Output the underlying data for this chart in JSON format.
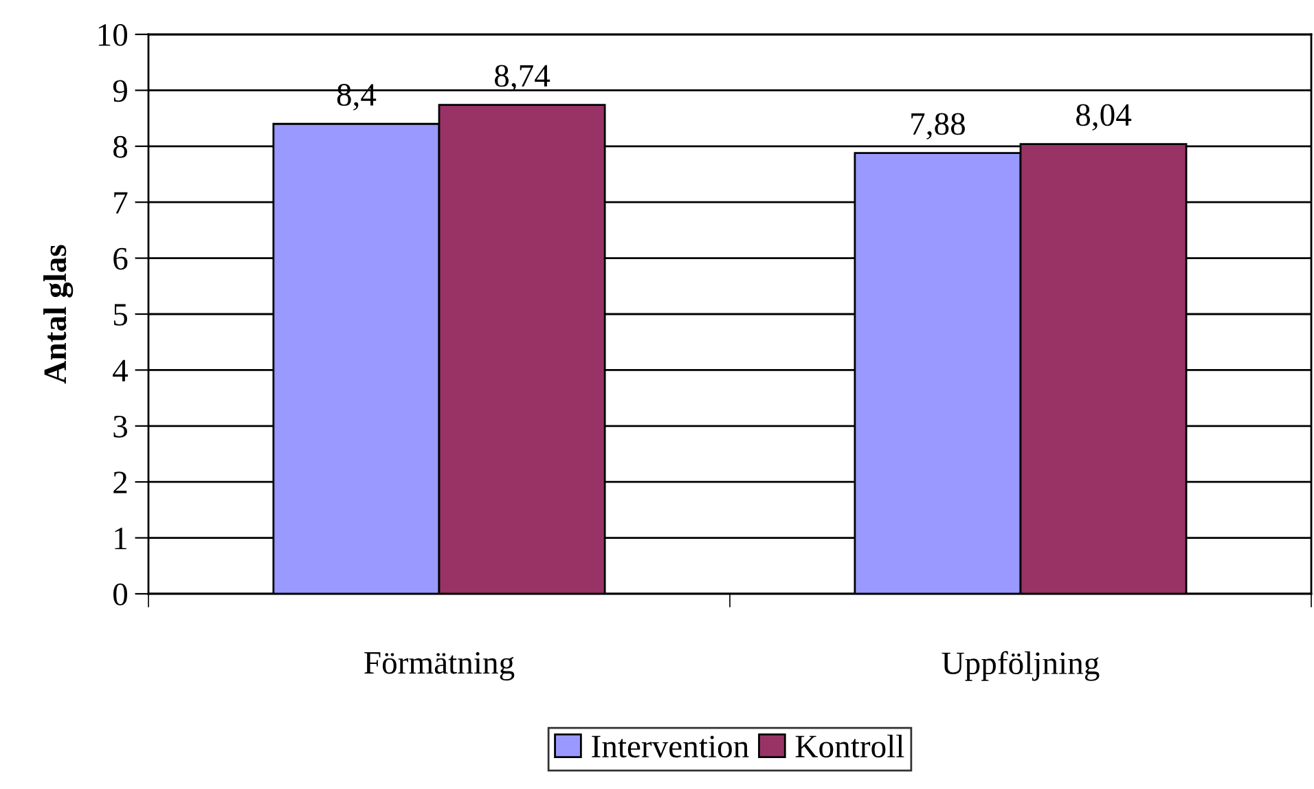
{
  "chart_data": {
    "type": "bar",
    "ylabel": "Antal glas",
    "categories": [
      "Förmätning",
      "Uppföljning"
    ],
    "series": [
      {
        "name": "Intervention",
        "color": "#9999ff",
        "values": [
          8.4,
          7.88
        ],
        "value_labels": [
          "8,4",
          "7,88"
        ]
      },
      {
        "name": "Kontroll",
        "color": "#993366",
        "values": [
          8.74,
          8.04
        ],
        "value_labels": [
          "8,74",
          "8,04"
        ]
      }
    ],
    "ylim": [
      0,
      10
    ],
    "yticks": [
      0,
      1,
      2,
      3,
      4,
      5,
      6,
      7,
      8,
      9,
      10
    ],
    "grid": "y",
    "legend": "bottom"
  }
}
